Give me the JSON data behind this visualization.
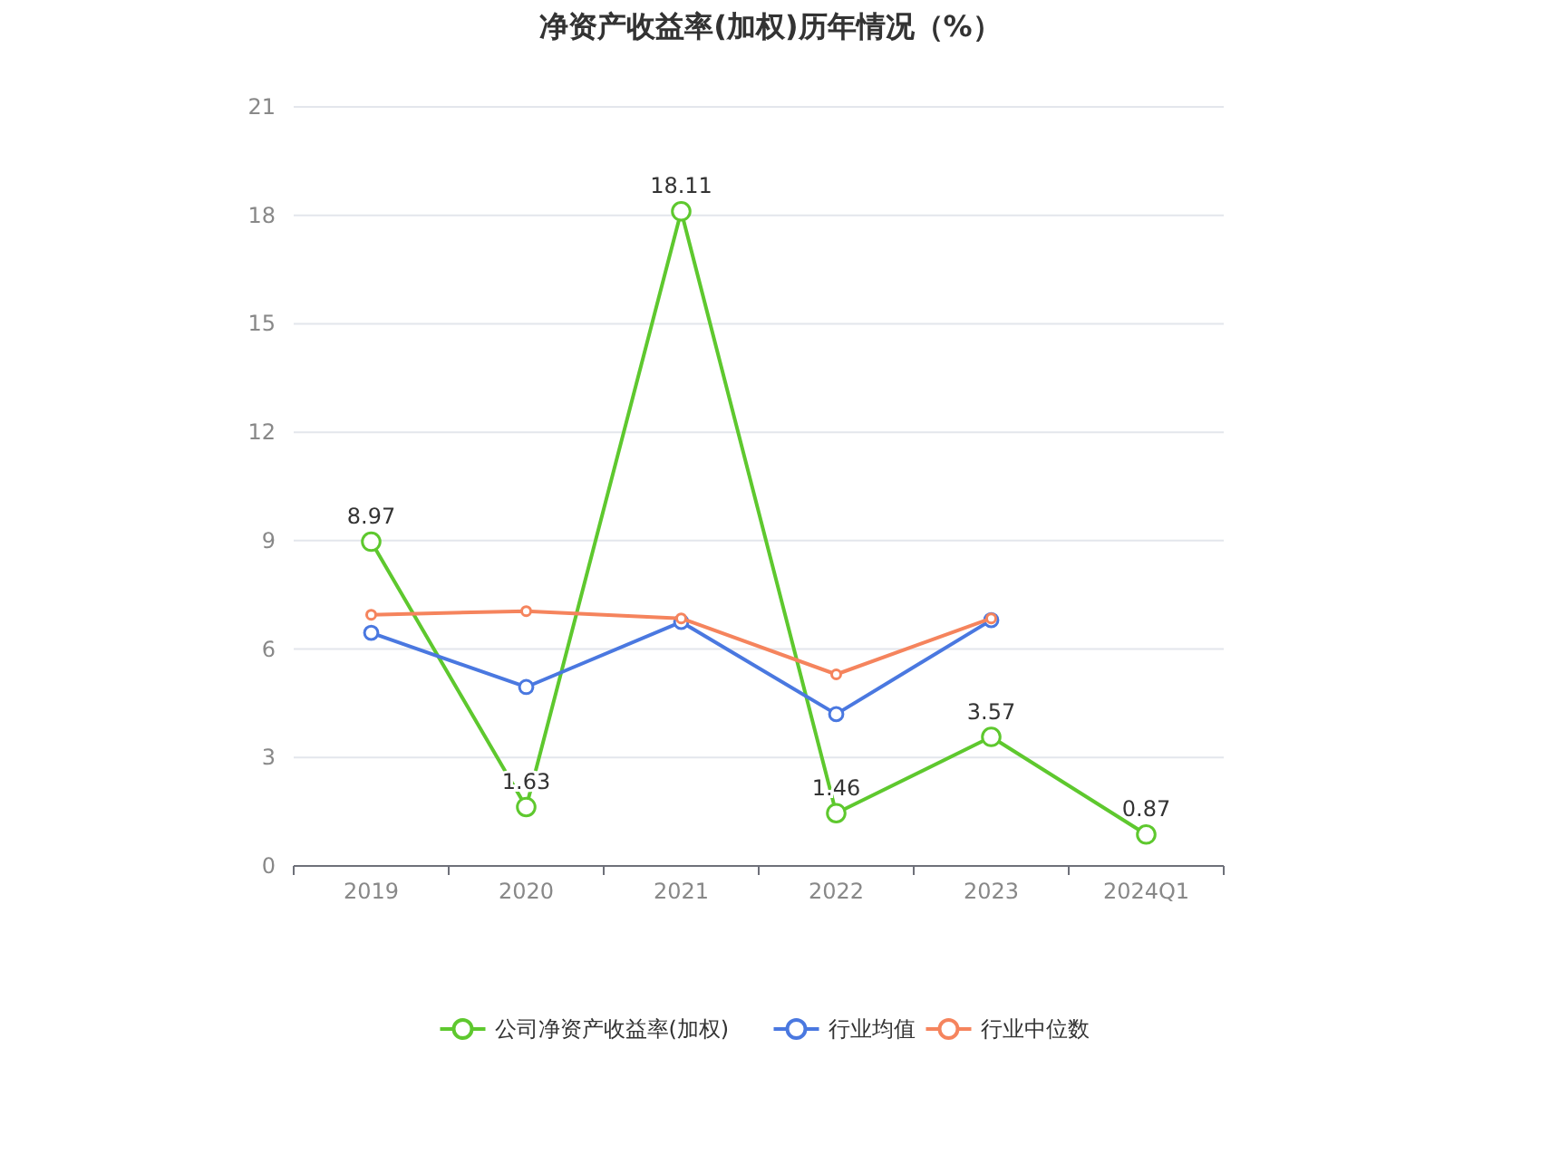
{
  "chart_data": {
    "type": "line",
    "title": "净资产收益率(加权)历年情况（%）",
    "categories": [
      "2019",
      "2020",
      "2021",
      "2022",
      "2023",
      "2024Q1"
    ],
    "series": [
      {
        "name": "公司净资产收益率(加权)",
        "color": "#5ec82e",
        "values": [
          8.97,
          1.63,
          18.11,
          1.46,
          3.57,
          0.87
        ],
        "value_labels": [
          "8.97",
          "1.63",
          "18.11",
          "1.46",
          "3.57",
          "0.87"
        ]
      },
      {
        "name": "行业均值",
        "color": "#4a78e0",
        "values": [
          6.45,
          4.95,
          6.75,
          4.2,
          6.8,
          null
        ]
      },
      {
        "name": "行业中位数",
        "color": "#f5845d",
        "values": [
          6.95,
          7.05,
          6.85,
          5.3,
          6.85,
          null
        ]
      }
    ],
    "ylim": [
      0,
      21
    ],
    "yticks": [
      0,
      3,
      6,
      9,
      12,
      15,
      18,
      21
    ],
    "grid": "y",
    "legend": "bottom",
    "marker": "circle",
    "line_style": "solid"
  }
}
